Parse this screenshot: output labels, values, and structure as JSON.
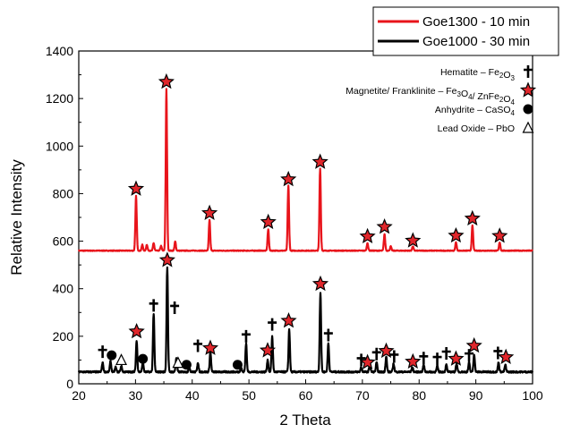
{
  "chart_data": {
    "type": "line",
    "title": "",
    "xlabel": "2 Theta",
    "ylabel": "Relative Intensity",
    "xlim": [
      20,
      100
    ],
    "ylim": [
      0,
      1400
    ],
    "xticks": [
      20,
      30,
      40,
      50,
      60,
      70,
      80,
      90,
      100
    ],
    "yticks": [
      0,
      200,
      400,
      600,
      800,
      1000,
      1200,
      1400
    ],
    "grid": false,
    "legend_position": "top-right",
    "series": [
      {
        "name": "Goe1300 - 10 min",
        "color": "#e8141b",
        "baseline": 560,
        "peaks": [
          [
            30.1,
            790
          ],
          [
            31.2,
            585
          ],
          [
            32.0,
            585
          ],
          [
            33.2,
            592
          ],
          [
            34.5,
            580
          ],
          [
            35.45,
            1240
          ],
          [
            37.0,
            598
          ],
          [
            43.05,
            690
          ],
          [
            53.4,
            650
          ],
          [
            56.95,
            835
          ],
          [
            62.55,
            905
          ],
          [
            70.9,
            592
          ],
          [
            73.9,
            630
          ],
          [
            75.0,
            578
          ],
          [
            78.9,
            578
          ],
          [
            86.5,
            595
          ],
          [
            89.4,
            667
          ],
          [
            94.2,
            595
          ]
        ]
      },
      {
        "name": "Goe1000 - 30 min",
        "color": "#000000",
        "baseline": 50,
        "peaks": [
          [
            24.2,
            90
          ],
          [
            25.6,
            95
          ],
          [
            26.5,
            70
          ],
          [
            27.5,
            75
          ],
          [
            30.2,
            180
          ],
          [
            31.3,
            90
          ],
          [
            33.2,
            295
          ],
          [
            35.6,
            490
          ],
          [
            37.2,
            110
          ],
          [
            39.5,
            70
          ],
          [
            41.0,
            90
          ],
          [
            43.2,
            135
          ],
          [
            48.6,
            70
          ],
          [
            49.5,
            170
          ],
          [
            53.3,
            100
          ],
          [
            54.1,
            200
          ],
          [
            57.1,
            230
          ],
          [
            62.6,
            385
          ],
          [
            64.0,
            170
          ],
          [
            69.8,
            70
          ],
          [
            71.3,
            80
          ],
          [
            72.5,
            90
          ],
          [
            74.2,
            115
          ],
          [
            75.5,
            85
          ],
          [
            78.8,
            70
          ],
          [
            80.8,
            80
          ],
          [
            83.2,
            75
          ],
          [
            84.8,
            80
          ],
          [
            86.6,
            85
          ],
          [
            88.8,
            90
          ],
          [
            89.7,
            125
          ],
          [
            94.0,
            90
          ],
          [
            95.2,
            80
          ]
        ]
      }
    ],
    "phase_key": [
      {
        "prefix": "Hematite – Fe",
        "sub1": "2",
        "mid": "O",
        "sub2": "3",
        "rest": "",
        "sub3": "",
        "tail": "",
        "symbol": "cross"
      },
      {
        "prefix": "Magnetite/ Franklinite – Fe",
        "sub1": "3",
        "mid": "O",
        "sub2": "4",
        "rest": "/ ZnFe",
        "sub3": "2",
        "tail": "O",
        "sub4": "4",
        "symbol": "star"
      },
      {
        "prefix": "Anhydrite – CaSO",
        "sub1": "4",
        "mid": "",
        "sub2": "",
        "rest": "",
        "sub3": "",
        "tail": "",
        "symbol": "circle"
      },
      {
        "prefix": "Lead Oxide – PbO",
        "sub1": "",
        "mid": "",
        "sub2": "",
        "rest": "",
        "sub3": "",
        "tail": "",
        "symbol": "triangle"
      }
    ],
    "markers": {
      "red": [
        {
          "x": 30.1,
          "y": 820,
          "symbol": "star"
        },
        {
          "x": 35.45,
          "y": 1270,
          "symbol": "star"
        },
        {
          "x": 43.05,
          "y": 718,
          "symbol": "star"
        },
        {
          "x": 53.4,
          "y": 680,
          "symbol": "star"
        },
        {
          "x": 56.95,
          "y": 860,
          "symbol": "star"
        },
        {
          "x": 62.55,
          "y": 933,
          "symbol": "star"
        },
        {
          "x": 70.9,
          "y": 620,
          "symbol": "star"
        },
        {
          "x": 73.9,
          "y": 660,
          "symbol": "star"
        },
        {
          "x": 78.9,
          "y": 602,
          "symbol": "star"
        },
        {
          "x": 86.5,
          "y": 623,
          "symbol": "star"
        },
        {
          "x": 89.4,
          "y": 695,
          "symbol": "star"
        },
        {
          "x": 94.2,
          "y": 622,
          "symbol": "star"
        }
      ],
      "black": [
        {
          "x": 24.2,
          "y": 135,
          "symbol": "cross"
        },
        {
          "x": 25.8,
          "y": 120,
          "symbol": "circle"
        },
        {
          "x": 27.5,
          "y": 100,
          "symbol": "triangle"
        },
        {
          "x": 30.2,
          "y": 220,
          "symbol": "star"
        },
        {
          "x": 31.3,
          "y": 105,
          "symbol": "circle"
        },
        {
          "x": 33.2,
          "y": 330,
          "symbol": "cross"
        },
        {
          "x": 35.6,
          "y": 520,
          "symbol": "star"
        },
        {
          "x": 36.9,
          "y": 320,
          "symbol": "cross"
        },
        {
          "x": 37.5,
          "y": 88,
          "symbol": "triangle"
        },
        {
          "x": 39.0,
          "y": 80,
          "symbol": "circle"
        },
        {
          "x": 41.0,
          "y": 160,
          "symbol": "cross"
        },
        {
          "x": 43.2,
          "y": 150,
          "symbol": "star"
        },
        {
          "x": 48.0,
          "y": 80,
          "symbol": "circle"
        },
        {
          "x": 49.5,
          "y": 200,
          "symbol": "cross"
        },
        {
          "x": 53.3,
          "y": 140,
          "symbol": "star"
        },
        {
          "x": 54.1,
          "y": 250,
          "symbol": "cross"
        },
        {
          "x": 57.0,
          "y": 265,
          "symbol": "star"
        },
        {
          "x": 62.6,
          "y": 420,
          "symbol": "star"
        },
        {
          "x": 64.0,
          "y": 205,
          "symbol": "cross"
        },
        {
          "x": 69.8,
          "y": 100,
          "symbol": "cross"
        },
        {
          "x": 70.9,
          "y": 90,
          "symbol": "star"
        },
        {
          "x": 72.5,
          "y": 125,
          "symbol": "cross"
        },
        {
          "x": 74.2,
          "y": 138,
          "symbol": "star"
        },
        {
          "x": 75.6,
          "y": 115,
          "symbol": "cross"
        },
        {
          "x": 78.9,
          "y": 93,
          "symbol": "star"
        },
        {
          "x": 80.8,
          "y": 108,
          "symbol": "cross"
        },
        {
          "x": 83.2,
          "y": 105,
          "symbol": "cross"
        },
        {
          "x": 84.8,
          "y": 128,
          "symbol": "cross"
        },
        {
          "x": 86.5,
          "y": 105,
          "symbol": "star"
        },
        {
          "x": 88.8,
          "y": 120,
          "symbol": "cross"
        },
        {
          "x": 89.7,
          "y": 160,
          "symbol": "star"
        },
        {
          "x": 93.9,
          "y": 130,
          "symbol": "cross"
        },
        {
          "x": 95.3,
          "y": 112,
          "symbol": "star"
        }
      ]
    }
  }
}
